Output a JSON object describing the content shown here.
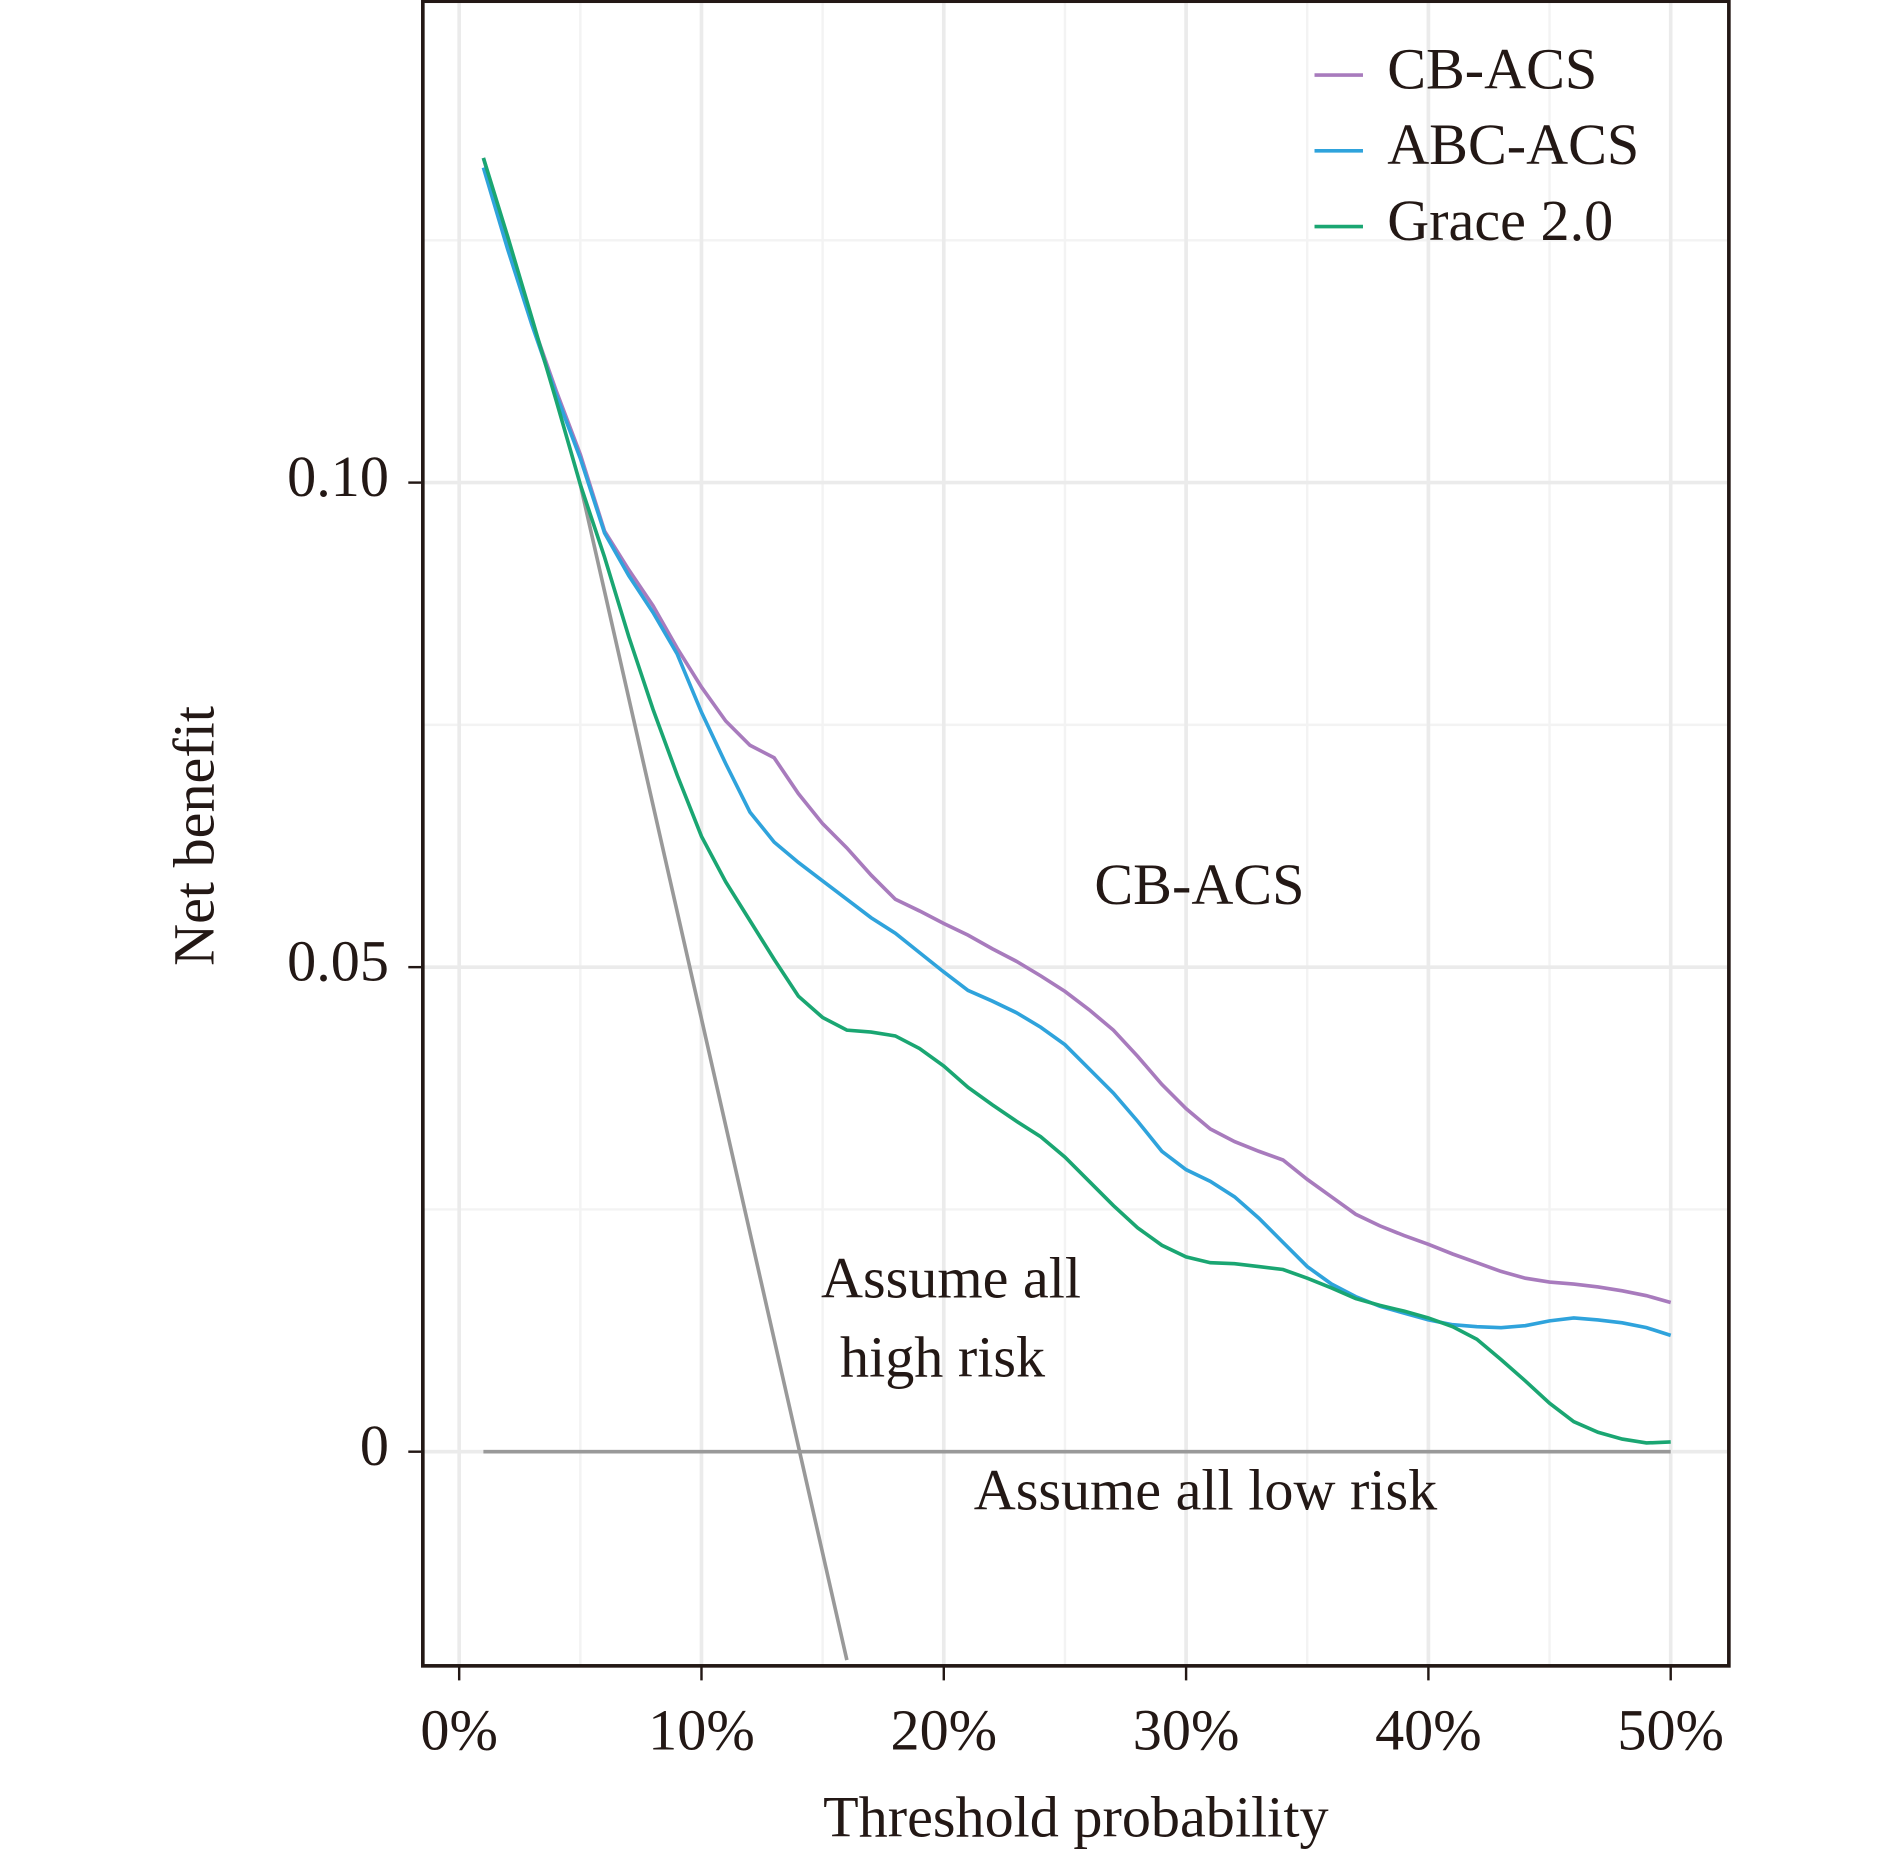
{
  "chart_data": {
    "type": "line",
    "xlabel": "Threshold probability",
    "ylabel": "Net benefit",
    "x": [
      1,
      2,
      3,
      4,
      5,
      6,
      7,
      8,
      9,
      10,
      11,
      12,
      13,
      14,
      15,
      16,
      17,
      18,
      19,
      20,
      21,
      22,
      23,
      24,
      25,
      26,
      27,
      28,
      29,
      30,
      31,
      32,
      33,
      34,
      35,
      36,
      37,
      38,
      39,
      40,
      41,
      42,
      43,
      44,
      45,
      46,
      47,
      48,
      49,
      50
    ],
    "series": [
      {
        "name": "CB-ACS",
        "color": "#a87bbd",
        "values": [
          0.1335,
          0.1248,
          0.1166,
          0.1095,
          0.1029,
          0.095,
          0.091,
          0.0873,
          0.0829,
          0.0789,
          0.0754,
          0.0729,
          0.0716,
          0.0679,
          0.0648,
          0.0623,
          0.0595,
          0.057,
          0.0558,
          0.0545,
          0.0533,
          0.0519,
          0.0506,
          0.0491,
          0.0475,
          0.0456,
          0.0435,
          0.0408,
          0.0379,
          0.0354,
          0.0333,
          0.032,
          0.031,
          0.0301,
          0.0281,
          0.0263,
          0.0245,
          0.0233,
          0.0223,
          0.0214,
          0.0204,
          0.0195,
          0.0186,
          0.0179,
          0.0175,
          0.0173,
          0.017,
          0.0166,
          0.0161,
          0.0154
        ]
      },
      {
        "name": "ABC-ACS",
        "color": "#2fa3dc",
        "values": [
          0.1325,
          0.1241,
          0.1163,
          0.1091,
          0.1025,
          0.0948,
          0.0904,
          0.0866,
          0.0823,
          0.0763,
          0.071,
          0.066,
          0.0629,
          0.0608,
          0.0589,
          0.057,
          0.0551,
          0.0535,
          0.0515,
          0.0495,
          0.0476,
          0.0465,
          0.0453,
          0.0438,
          0.042,
          0.0395,
          0.037,
          0.0341,
          0.031,
          0.0291,
          0.0279,
          0.0263,
          0.0241,
          0.0216,
          0.0191,
          0.0173,
          0.016,
          0.015,
          0.0143,
          0.0136,
          0.0131,
          0.0129,
          0.0128,
          0.013,
          0.0135,
          0.0138,
          0.0136,
          0.0133,
          0.0128,
          0.012
        ]
      },
      {
        "name": "Grace 2.0",
        "color": "#1aa672",
        "values": [
          0.1335,
          0.1254,
          0.117,
          0.1085,
          0.0998,
          0.0923,
          0.0841,
          0.0766,
          0.0698,
          0.0635,
          0.0588,
          0.0548,
          0.0508,
          0.047,
          0.0448,
          0.0435,
          0.0433,
          0.0429,
          0.0416,
          0.0398,
          0.0376,
          0.0358,
          0.0341,
          0.0325,
          0.0304,
          0.0279,
          0.0254,
          0.0231,
          0.0213,
          0.0201,
          0.0195,
          0.0194,
          0.0191,
          0.0188,
          0.0179,
          0.0169,
          0.0158,
          0.0151,
          0.0145,
          0.0138,
          0.0129,
          0.0116,
          0.0095,
          0.0073,
          0.005,
          0.0031,
          0.002,
          0.0013,
          0.0009,
          0.001
        ]
      }
    ],
    "reference_lines": [
      {
        "label": [
          "Assume all",
          "high risk"
        ],
        "color": "#999999",
        "x": [
          5,
          16
        ],
        "values": [
          0.0998,
          -0.0215
        ]
      },
      {
        "label": [
          "Assume all low risk"
        ],
        "color": "#999999",
        "x": [
          1,
          50
        ],
        "values": [
          0,
          0
        ]
      }
    ],
    "annotations": [
      "CB-ACS"
    ],
    "xlim": [
      -1.5,
      52.4
    ],
    "ylim": [
      -0.0221,
      0.1498
    ],
    "xticks": [
      {
        "value": 0,
        "label": "0%"
      },
      {
        "value": 10,
        "label": "10%"
      },
      {
        "value": 20,
        "label": "20%"
      },
      {
        "value": 30,
        "label": "30%"
      },
      {
        "value": 40,
        "label": "40%"
      },
      {
        "value": 50,
        "label": "50%"
      }
    ],
    "yticks": [
      0,
      0.05,
      {
        "value": 0.1,
        "label": "0.10"
      }
    ],
    "grid": true,
    "legend": "top-right"
  }
}
